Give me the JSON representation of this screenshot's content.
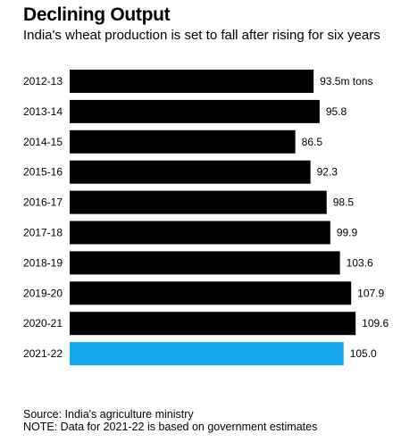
{
  "title": "Declining Output",
  "subtitle": "India's wheat production is set to fall after rising for six years",
  "chart_data": {
    "type": "bar",
    "orientation": "horizontal",
    "categories": [
      "2012-13",
      "2013-14",
      "2014-15",
      "2015-16",
      "2016-17",
      "2017-18",
      "2018-19",
      "2019-20",
      "2020-21",
      "2021-22"
    ],
    "values": [
      93.5,
      95.8,
      86.5,
      92.3,
      98.5,
      99.9,
      103.6,
      107.9,
      109.6,
      105.0
    ],
    "value_labels": [
      "93.5m tons",
      "95.8",
      "86.5",
      "92.3",
      "98.5",
      "99.9",
      "103.6",
      "107.9",
      "109.6",
      "105.0"
    ],
    "xlim": [
      0,
      114
    ],
    "grid": false,
    "colors": {
      "default": "#000000",
      "highlight": "#13a8f0"
    },
    "highlight_index": 9
  },
  "footer": {
    "source": "Source: India's agriculture ministry",
    "note": "NOTE: Data for 2021-22 is based on government estimates"
  }
}
